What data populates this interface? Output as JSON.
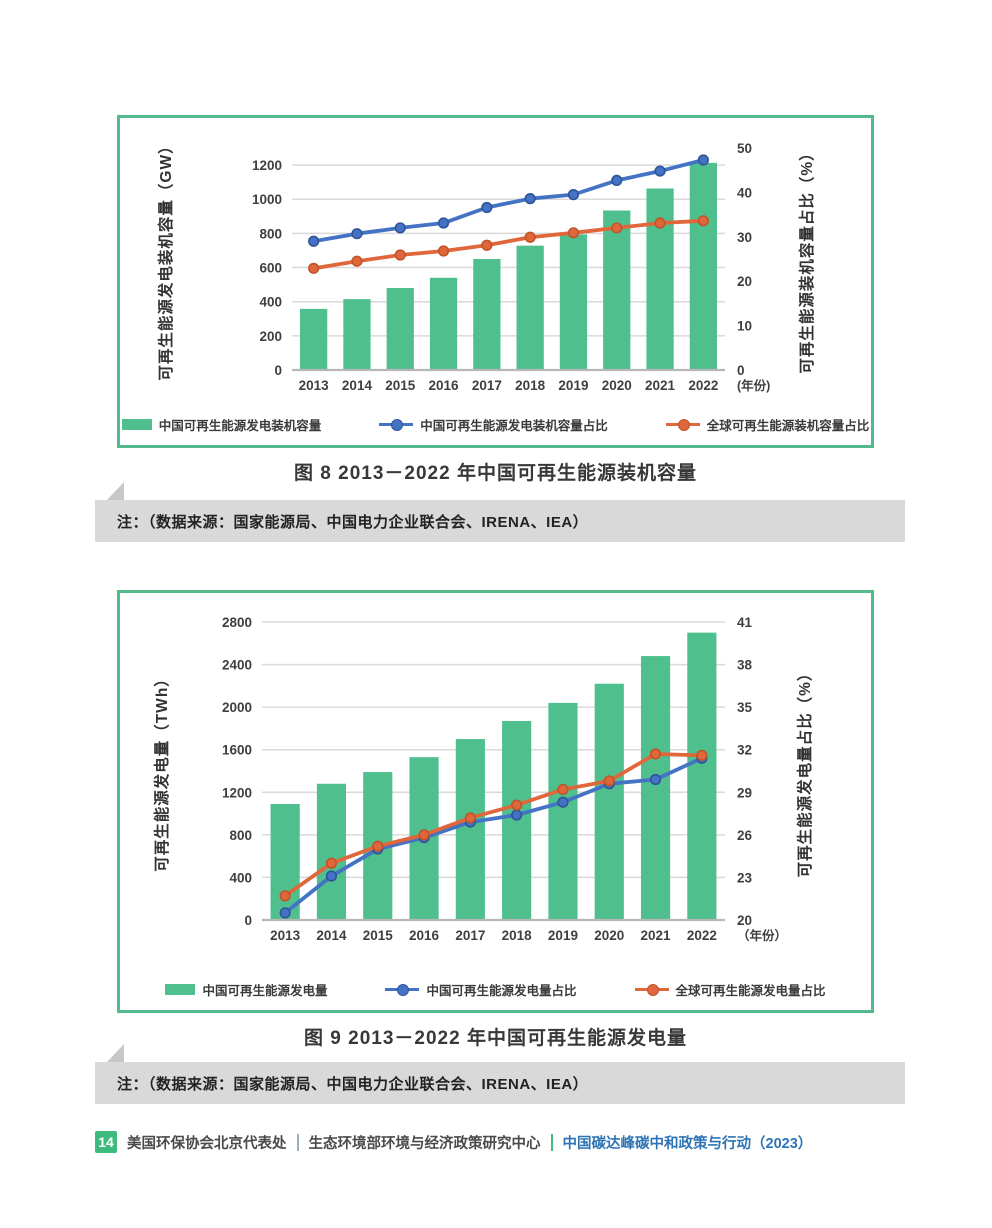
{
  "page": {
    "figure8": {
      "caption": "图 8  2013－2022 年中国可再生能源装机容量",
      "note": "注：（数据来源：国家能源局、中国电力企业联合会、IRENA、IEA）"
    },
    "figure9": {
      "caption": "图 9  2013－2022 年中国可再生能源发电量",
      "note": "注：（数据来源：国家能源局、中国电力企业联合会、IRENA、IEA）"
    },
    "footer": {
      "page_number": "14",
      "org1": "美国环保协会北京代表处",
      "org2": "生态环境部环境与经济政策研究中心",
      "report": "中国碳达峰碳中和政策与行动（2023）"
    }
  },
  "colors": {
    "bar_green": "#4fc08d",
    "card_border_green": "#55b98b",
    "line_blue": "#4472c4",
    "line_blue_marker_stroke": "#2f5597",
    "line_orange": "#e0663c",
    "line_orange_marker_stroke": "#c05428",
    "gridline": "#d9d9d9",
    "axis_line": "#b7b7b7",
    "note_band": "#d9d9d9",
    "badge_green": "#3dba7e",
    "report_blue": "#2e74b5"
  },
  "chart_data": [
    {
      "type": "bar",
      "subtype": "combo-bar-line-dual-axis",
      "title": "图 8  2013－2022 年中国可再生能源装机容量",
      "categories": [
        "2013",
        "2014",
        "2015",
        "2016",
        "2017",
        "2018",
        "2019",
        "2020",
        "2021",
        "2022"
      ],
      "xlabel": "(年份)",
      "left_axis": {
        "label": "可再生生能源发电装机容量（GW）",
        "label_text": "可再生能源发电装机容量（GW）",
        "ticks": [
          0,
          200,
          400,
          600,
          800,
          1000,
          1200
        ],
        "min": 0,
        "value_at_top": 1300
      },
      "right_axis": {
        "label": "可再生能源装机容量占比（%）",
        "ticks": [
          0,
          10,
          20,
          30,
          40,
          50
        ],
        "min": 0,
        "value_at_top": 50
      },
      "series": [
        {
          "name": "中国可再生能源发电装机容量",
          "type": "bar",
          "axis": "left",
          "color": "#4fc08d",
          "values": [
            358,
            415,
            480,
            540,
            650,
            728,
            794,
            934,
            1063,
            1213
          ]
        },
        {
          "name": "中国可再生能源发电装机容量占比",
          "type": "line",
          "axis": "right",
          "color": "#4472c4",
          "marker_stroke": "#2f5597",
          "values": [
            29.0,
            30.7,
            32.0,
            33.1,
            36.6,
            38.6,
            39.5,
            42.7,
            44.8,
            47.3
          ]
        },
        {
          "name": "全球可再生能源装机容量占比",
          "type": "line",
          "axis": "right",
          "color": "#e0663c",
          "marker_stroke": "#c05428",
          "values": [
            22.9,
            24.5,
            25.9,
            26.8,
            28.1,
            29.9,
            30.9,
            32.0,
            33.1,
            33.6
          ]
        }
      ],
      "grid": "horizontal",
      "legend_position": "bottom"
    },
    {
      "type": "bar",
      "subtype": "combo-bar-line-dual-axis",
      "title": "图 9  2013－2022 年中国可再生能源发电量",
      "categories": [
        "2013",
        "2014",
        "2015",
        "2016",
        "2017",
        "2018",
        "2019",
        "2020",
        "2021",
        "2022"
      ],
      "xlabel": "（年份）",
      "left_axis": {
        "label": "可再生能源发电量（TWh）",
        "label_text": "可再生能源发电量（TWh）",
        "ticks": [
          0,
          400,
          800,
          1200,
          1600,
          2000,
          2400,
          2800
        ],
        "min": 0,
        "value_at_top": 2800
      },
      "right_axis": {
        "label": "可再生能源发电量占比（%）",
        "ticks": [
          20,
          23,
          26,
          29,
          32,
          35,
          38,
          41
        ],
        "min": 20,
        "value_at_top": 41
      },
      "series": [
        {
          "name": "中国可再生能源发电量",
          "type": "bar",
          "axis": "left",
          "color": "#4fc08d",
          "values": [
            1090,
            1280,
            1390,
            1530,
            1700,
            1870,
            2040,
            2220,
            2480,
            2700
          ]
        },
        {
          "name": "中国可再生能源发电量占比",
          "type": "line",
          "axis": "right",
          "color": "#4472c4",
          "marker_stroke": "#2f5597",
          "values": [
            20.5,
            23.1,
            25.0,
            25.8,
            26.9,
            27.4,
            28.3,
            29.6,
            29.9,
            31.4
          ]
        },
        {
          "name": "全球可再生能源发电量占比",
          "type": "line",
          "axis": "right",
          "color": "#e0663c",
          "marker_stroke": "#c05428",
          "values": [
            21.7,
            24.0,
            25.2,
            26.0,
            27.2,
            28.1,
            29.2,
            29.8,
            31.7,
            31.6
          ]
        }
      ],
      "grid": "horizontal",
      "legend_position": "bottom"
    }
  ]
}
